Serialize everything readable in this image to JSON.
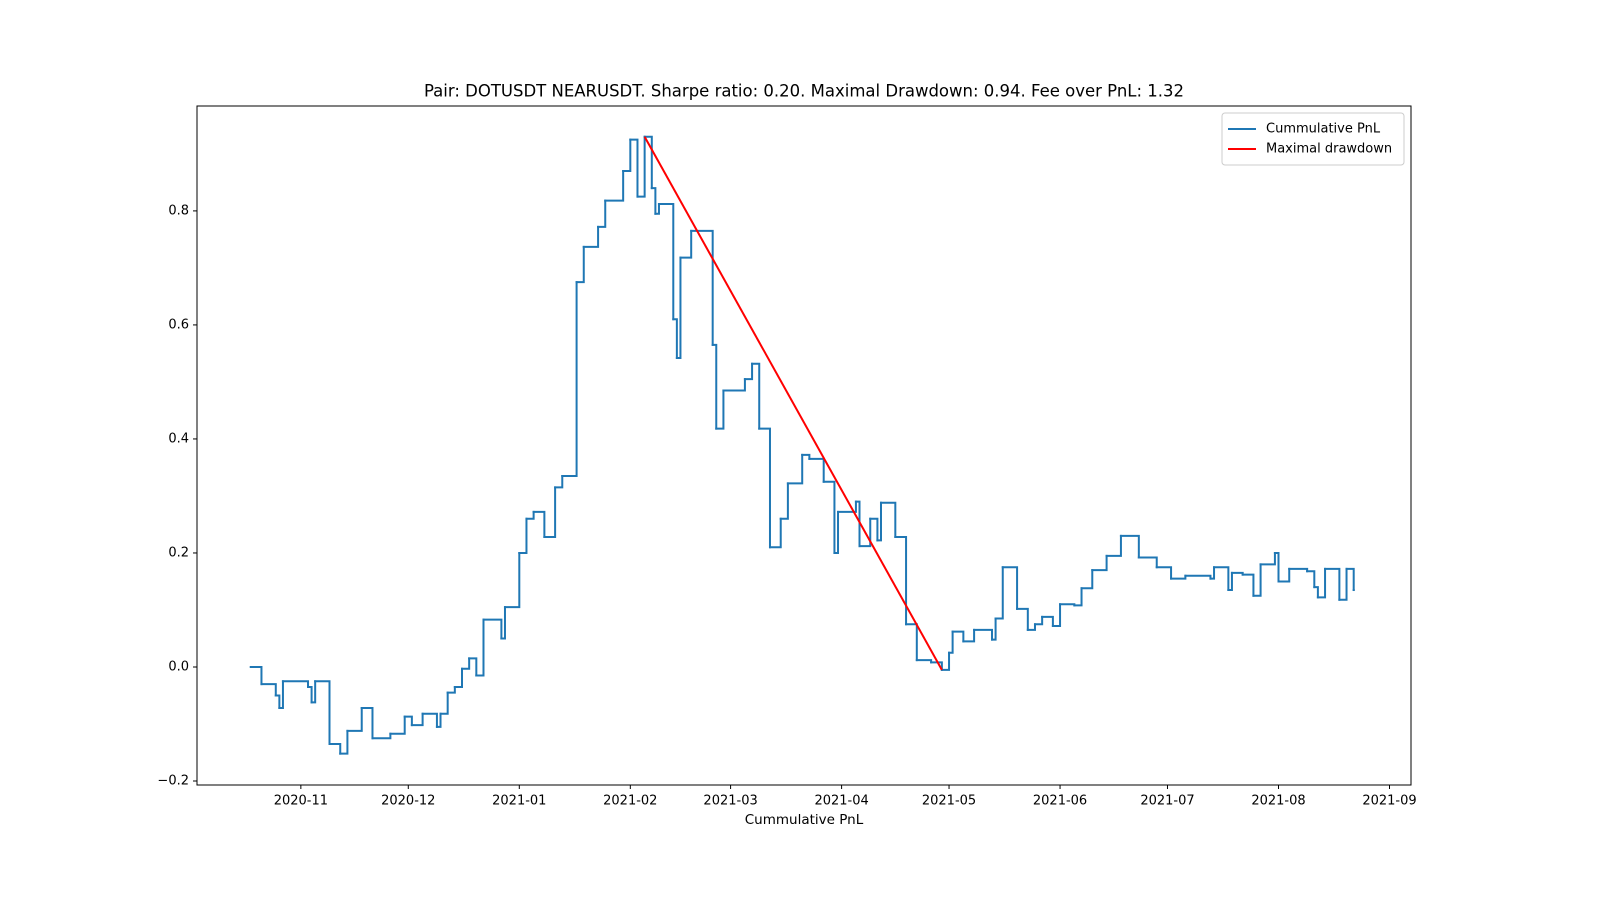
{
  "chart_data": {
    "type": "line",
    "title": "Pair: DOTUSDT NEARUSDT. Sharpe ratio: 0.20. Maximal Drawdown: 0.94. Fee over PnL: 1.32",
    "x_label": "Cummulative PnL",
    "xlim": [
      "2020-10-03",
      "2021-09-07"
    ],
    "xticks": [
      "2020-11",
      "2020-12",
      "2021-01",
      "2021-02",
      "2021-03",
      "2021-04",
      "2021-05",
      "2021-06",
      "2021-07",
      "2021-08",
      "2021-09"
    ],
    "ylim": [
      -0.207,
      0.984
    ],
    "yticks": [
      {
        "value": -0.2,
        "label": "−0.2"
      },
      {
        "value": 0,
        "label": "0.0"
      },
      0.2,
      0.4,
      0.6,
      0.8
    ],
    "legend": "upper right",
    "series": [
      {
        "name": "Cummulative PnL",
        "color": "#1f77b4",
        "drawstyle": "steps-post",
        "x": [
          "2020-10-18",
          "2020-10-21",
          "2020-10-25",
          "2020-10-26",
          "2020-10-27",
          "2020-11-03",
          "2020-11-04",
          "2020-11-05",
          "2020-11-09",
          "2020-11-12",
          "2020-11-14",
          "2020-11-18",
          "2020-11-21",
          "2020-11-26",
          "2020-11-30",
          "2020-12-02",
          "2020-12-05",
          "2020-12-09",
          "2020-12-10",
          "2020-12-12",
          "2020-12-14",
          "2020-12-16",
          "2020-12-18",
          "2020-12-20",
          "2020-12-22",
          "2020-12-27",
          "2020-12-28",
          "2021-01-01",
          "2021-01-03",
          "2021-01-05",
          "2021-01-08",
          "2021-01-11",
          "2021-01-13",
          "2021-01-17",
          "2021-01-19",
          "2021-01-23",
          "2021-01-25",
          "2021-01-30",
          "2021-02-01",
          "2021-02-03",
          "2021-02-05",
          "2021-02-07",
          "2021-02-08",
          "2021-02-09",
          "2021-02-13",
          "2021-02-14",
          "2021-02-15",
          "2021-02-18",
          "2021-02-24",
          "2021-02-25",
          "2021-02-27",
          "2021-03-05",
          "2021-03-07",
          "2021-03-09",
          "2021-03-12",
          "2021-03-15",
          "2021-03-17",
          "2021-03-21",
          "2021-03-23",
          "2021-03-27",
          "2021-03-30",
          "2021-03-31",
          "2021-04-05",
          "2021-04-06",
          "2021-04-09",
          "2021-04-11",
          "2021-04-12",
          "2021-04-16",
          "2021-04-19",
          "2021-04-22",
          "2021-04-26",
          "2021-04-29",
          "2021-05-01",
          "2021-05-02",
          "2021-05-05",
          "2021-05-08",
          "2021-05-13",
          "2021-05-14",
          "2021-05-16",
          "2021-05-20",
          "2021-05-23",
          "2021-05-25",
          "2021-05-27",
          "2021-05-30",
          "2021-06-01",
          "2021-06-05",
          "2021-06-07",
          "2021-06-10",
          "2021-06-14",
          "2021-06-18",
          "2021-06-23",
          "2021-06-28",
          "2021-07-02",
          "2021-07-06",
          "2021-07-13",
          "2021-07-14",
          "2021-07-18",
          "2021-07-19",
          "2021-07-22",
          "2021-07-25",
          "2021-07-27",
          "2021-07-31",
          "2021-08-01",
          "2021-08-04",
          "2021-08-09",
          "2021-08-11",
          "2021-08-12",
          "2021-08-14",
          "2021-08-18",
          "2021-08-20",
          "2021-08-22"
        ],
        "values": [
          0.0,
          -0.03,
          -0.05,
          -0.072,
          -0.025,
          -0.035,
          -0.062,
          -0.025,
          -0.135,
          -0.152,
          -0.112,
          -0.072,
          -0.125,
          -0.117,
          -0.087,
          -0.102,
          -0.082,
          -0.105,
          -0.082,
          -0.045,
          -0.035,
          -0.003,
          0.015,
          -0.015,
          0.083,
          0.05,
          0.105,
          0.2,
          0.26,
          0.272,
          0.228,
          0.315,
          0.335,
          0.675,
          0.737,
          0.772,
          0.818,
          0.87,
          0.925,
          0.825,
          0.93,
          0.84,
          0.795,
          0.812,
          0.61,
          0.542,
          0.718,
          0.765,
          0.565,
          0.418,
          0.485,
          0.505,
          0.532,
          0.418,
          0.21,
          0.26,
          0.322,
          0.372,
          0.365,
          0.325,
          0.2,
          0.272,
          0.29,
          0.212,
          0.26,
          0.222,
          0.288,
          0.228,
          0.075,
          0.012,
          0.008,
          -0.005,
          0.025,
          0.062,
          0.045,
          0.065,
          0.048,
          0.085,
          0.175,
          0.102,
          0.065,
          0.075,
          0.088,
          0.072,
          0.11,
          0.108,
          0.138,
          0.17,
          0.195,
          0.23,
          0.192,
          0.175,
          0.155,
          0.16,
          0.155,
          0.175,
          0.135,
          0.165,
          0.162,
          0.125,
          0.18,
          0.2,
          0.15,
          0.172,
          0.168,
          0.14,
          0.122,
          0.172,
          0.118,
          0.172,
          0.135
        ]
      },
      {
        "name": "Maximal drawdown",
        "color": "#ff0000",
        "x": [
          "2021-02-05",
          "2021-04-29"
        ],
        "values": [
          0.93,
          -0.005
        ]
      }
    ]
  }
}
